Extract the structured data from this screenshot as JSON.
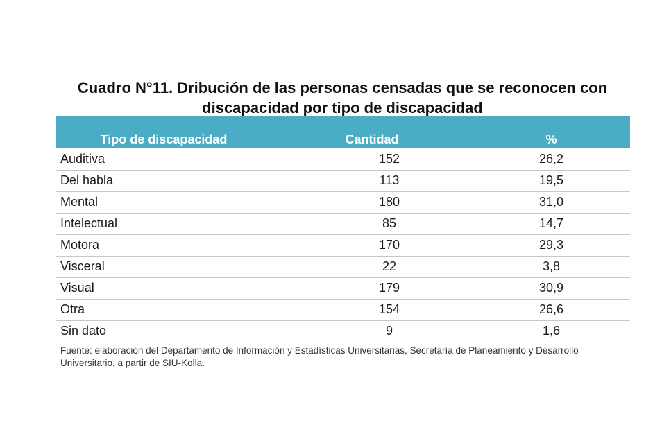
{
  "title_line1": "Cuadro N°11. Dribución de las personas censadas que se reconocen con",
  "title_line2": "discapacidad por tipo de discapacidad",
  "table": {
    "headers": [
      "Tipo de discapacidad",
      "Cantidad",
      "%"
    ],
    "rows": [
      {
        "tipo": "Auditiva",
        "cantidad": "152",
        "pct": "26,2"
      },
      {
        "tipo": "Del habla",
        "cantidad": "113",
        "pct": "19,5"
      },
      {
        "tipo": "Mental",
        "cantidad": "180",
        "pct": "31,0"
      },
      {
        "tipo": "Intelectual",
        "cantidad": "85",
        "pct": "14,7"
      },
      {
        "tipo": "Motora",
        "cantidad": "170",
        "pct": "29,3"
      },
      {
        "tipo": "Visceral",
        "cantidad": "22",
        "pct": "3,8"
      },
      {
        "tipo": "Visual",
        "cantidad": "179",
        "pct": "30,9"
      },
      {
        "tipo": "Otra",
        "cantidad": "154",
        "pct": "26,6"
      },
      {
        "tipo": "Sin dato",
        "cantidad": "9",
        "pct": "1,6"
      }
    ]
  },
  "source_line1": "Fuente: elaboración del Departamento de Información y Estadísticas Universitarias, Secretaría de Planeamiento y Desarrollo",
  "source_line2": "Universitario, a partir de  SIU-Kolla.",
  "colors": {
    "header_background": "#4bacc6",
    "header_text": "#ffffff",
    "row_divider": "#c8c8c8"
  }
}
